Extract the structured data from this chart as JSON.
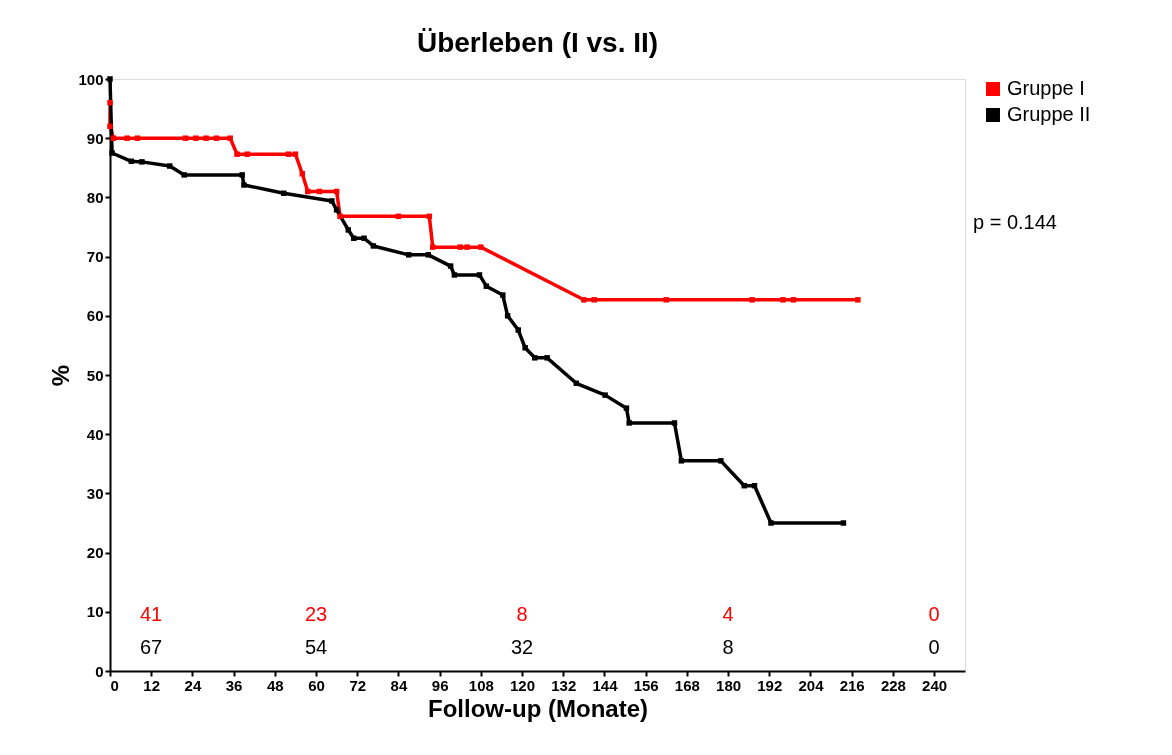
{
  "chart_data": {
    "type": "line",
    "title": "Überleben (I vs. II)",
    "xlabel": "Follow-up (Monate)",
    "ylabel": "%",
    "xlim": [
      0,
      249
    ],
    "xticks": [
      0,
      12,
      24,
      36,
      48,
      60,
      72,
      84,
      96,
      108,
      120,
      132,
      144,
      156,
      168,
      180,
      192,
      204,
      216,
      228,
      240
    ],
    "ylim": [
      0,
      100
    ],
    "yticks": [
      0,
      10,
      20,
      30,
      40,
      50,
      60,
      70,
      80,
      90,
      100
    ],
    "grid": false,
    "legend": "top right",
    "marker": "square",
    "line_style": "solid",
    "series": [
      {
        "name": "Gruppe I",
        "color": "#ff0000",
        "x": [
          0,
          0,
          1,
          5,
          8,
          22,
          25,
          28,
          31,
          35,
          37,
          40,
          52,
          54,
          56,
          57.6,
          61,
          66,
          67,
          84,
          93,
          94,
          102,
          104,
          108,
          138,
          141,
          162,
          187,
          196,
          199,
          217.8
        ],
        "values": [
          96,
          92,
          90,
          90,
          90,
          90,
          90,
          90,
          90,
          90,
          87.3,
          87.3,
          87.3,
          87.3,
          84,
          81,
          81,
          81,
          76.8,
          76.8,
          76.8,
          71.6,
          71.6,
          71.6,
          71.6,
          62.7,
          62.7,
          62.7,
          62.7,
          62.7,
          62.7,
          62.7
        ]
      },
      {
        "name": "Gruppe II",
        "color": "#000000",
        "x": [
          0,
          0.6,
          6.2,
          9.3,
          17.4,
          21.6,
          38.5,
          39,
          50.6,
          64.6,
          66,
          69.4,
          71,
          74,
          76.7,
          87,
          92.7,
          99.2,
          100.3,
          107.6,
          109.6,
          114.4,
          115.8,
          118.9,
          120.9,
          123.7,
          127.3,
          135.8,
          144.2,
          150.4,
          151.2,
          164.4,
          166.4,
          177.9,
          184.7,
          187.7,
          192.5,
          213.6
        ],
        "values": [
          100,
          87.5,
          86.1,
          86,
          85.3,
          83.8,
          83.8,
          82.1,
          80.7,
          79.4,
          77.9,
          74.5,
          73.1,
          73.1,
          71.8,
          70.3,
          70.3,
          68.4,
          66.9,
          66.9,
          65.0,
          63.5,
          60.0,
          57.6,
          54.6,
          52.9,
          52.9,
          48.6,
          46.6,
          44.4,
          41.9,
          41.9,
          35.5,
          35.5,
          31.3,
          31.3,
          25.0,
          25.0
        ]
      }
    ],
    "annotations": [
      "41",
      "23",
      "8",
      "4",
      "0",
      "67",
      "54",
      "32",
      "8",
      "0",
      "p = 0.144"
    ]
  }
}
